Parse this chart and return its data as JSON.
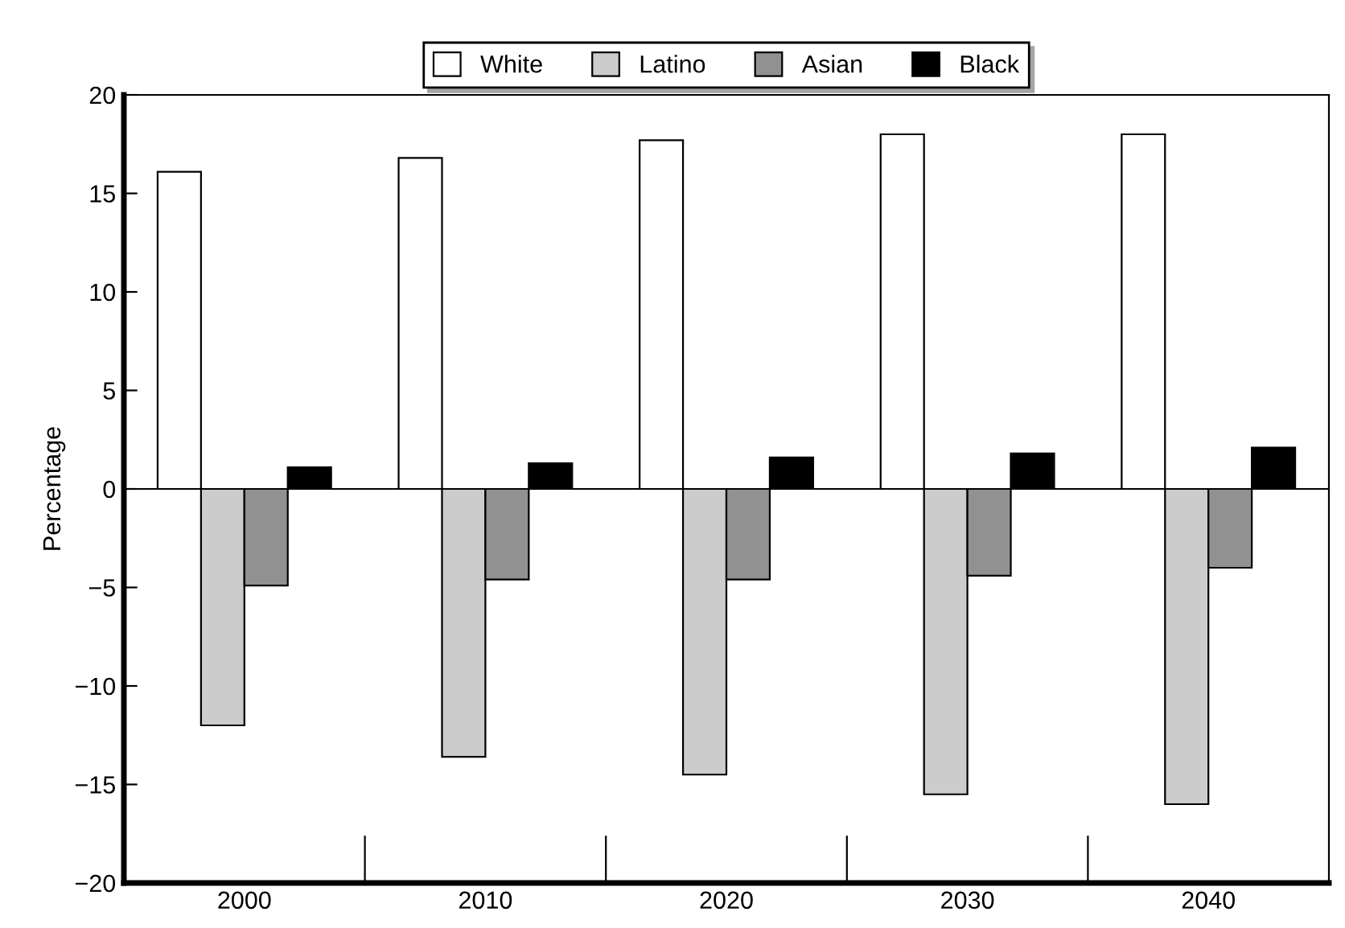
{
  "chart_data": {
    "type": "bar",
    "ylabel": "Percentage",
    "categories": [
      "2000",
      "2010",
      "2020",
      "2030",
      "2040"
    ],
    "series": [
      {
        "name": "White",
        "color": "#ffffff",
        "values": [
          16.1,
          16.8,
          17.7,
          18.0,
          18.0
        ]
      },
      {
        "name": "Latino",
        "color": "#cccccc",
        "values": [
          -12.0,
          -13.6,
          -14.5,
          -15.5,
          -16.0
        ]
      },
      {
        "name": "Asian",
        "color": "#919191",
        "values": [
          -4.9,
          -4.6,
          -4.6,
          -4.4,
          -4.0
        ]
      },
      {
        "name": "Black",
        "color": "#000000",
        "values": [
          1.1,
          1.3,
          1.6,
          1.8,
          2.1
        ]
      }
    ],
    "ylim": [
      -20,
      20
    ],
    "yticks": [
      {
        "value": -20,
        "label": "−20"
      },
      {
        "value": -15,
        "label": "−15"
      },
      {
        "value": -10,
        "label": "−10"
      },
      {
        "value": -5,
        "label": "−5"
      },
      0,
      5,
      10,
      15,
      20
    ],
    "ref_lines": [
      {
        "axis": "y",
        "value": 0,
        "color": "#000000"
      }
    ],
    "grid": false,
    "legend": "top"
  }
}
